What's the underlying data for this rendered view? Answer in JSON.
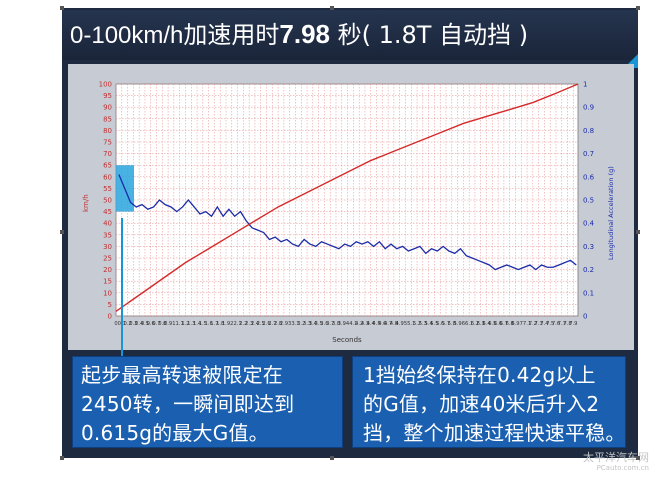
{
  "header": {
    "title_speed": "0-100km/h",
    "title_text1": "加速用时",
    "title_time": "7.98",
    "title_unit": "秒",
    "title_detail": "( 1.8T 自动挡 )"
  },
  "notes": {
    "left_lines": [
      "起步最高转速被限定在",
      "2450转，一瞬间即达到",
      "0.615g的最大G值。"
    ],
    "right_lines": [
      "1挡始终保持在0.42g以上",
      "的G值，加速40米后升入2",
      "挡，整个加速过程快速平稳。"
    ]
  },
  "watermark": {
    "line1": "太平洋汽车网",
    "line2": "PCauto.com.cn"
  },
  "colors": {
    "speed_line": "#d42a2a",
    "accel_line": "#1b2ca8",
    "highlight": "#2aa4de",
    "panel_bg": "#1d2a3f",
    "box_bg": "#1a5fb0"
  },
  "chart_data": {
    "type": "line",
    "xlabel": "Seconds",
    "ylabel_left": "km/h",
    "ylabel_right": "Longitudinal Acceleration (g)",
    "xlim": [
      0,
      7.98
    ],
    "ylim_left": [
      0,
      100
    ],
    "ylim_right": [
      0,
      1
    ],
    "left_ticks": [
      0,
      5,
      10,
      15,
      20,
      25,
      30,
      35,
      40,
      45,
      50,
      55,
      60,
      65,
      70,
      75,
      80,
      85,
      90,
      95,
      100
    ],
    "right_ticks": [
      0,
      0.1,
      0.2,
      0.3,
      0.4,
      0.5,
      0.6,
      0.7,
      0.8,
      0.9,
      1
    ],
    "x_tick_labels": [
      "0",
      "0.1",
      "0.2",
      "0.3",
      "0.4",
      "0.5",
      "0.6",
      "0.7",
      "0.8",
      "0.9",
      "1",
      "1.1",
      "1.2",
      "1.3",
      "1.4",
      "1.5",
      "1.6",
      "1.7",
      "1.8",
      "1.9",
      "2",
      "2.1",
      "2.2",
      "2.3",
      "2.4",
      "2.5",
      "2.6",
      "2.7",
      "2.8",
      "2.9",
      "3",
      "3.1",
      "3.2",
      "3.3",
      "3.4",
      "3.5",
      "3.6",
      "3.7",
      "3.8",
      "3.9",
      "4",
      "4.1",
      "4.2",
      "4.3",
      "4.4",
      "4.5",
      "4.6",
      "4.7",
      "4.8",
      "4.9",
      "5",
      "5.1",
      "5.2",
      "5.3",
      "5.4",
      "5.5",
      "5.6",
      "5.7",
      "5.8",
      "5.9",
      "6",
      "6.1",
      "6.2",
      "6.3",
      "6.4",
      "6.5",
      "6.6",
      "6.7",
      "6.8",
      "6.9",
      "7",
      "7.1",
      "7.2",
      "7.3",
      "7.4",
      "7.5",
      "7.6",
      "7.7",
      "7.8",
      "7.9"
    ],
    "grid": true,
    "series": [
      {
        "axis": "left",
        "x": [
          0,
          0.4,
          0.8,
          1.2,
          1.6,
          2.0,
          2.4,
          2.8,
          3.2,
          3.6,
          4.0,
          4.4,
          4.8,
          5.2,
          5.6,
          6.0,
          6.4,
          6.8,
          7.2,
          7.6,
          7.98
        ],
        "values": [
          2,
          9,
          16,
          23,
          29,
          35,
          41,
          47,
          52,
          57,
          62,
          67,
          71,
          75,
          79,
          83,
          86,
          89,
          92,
          96,
          100
        ]
      },
      {
        "axis": "right",
        "x": [
          0.05,
          0.15,
          0.25,
          0.35,
          0.45,
          0.55,
          0.65,
          0.75,
          0.85,
          0.95,
          1.05,
          1.15,
          1.25,
          1.35,
          1.45,
          1.55,
          1.65,
          1.75,
          1.85,
          1.95,
          2.05,
          2.15,
          2.25,
          2.35,
          2.45,
          2.55,
          2.65,
          2.75,
          2.85,
          2.95,
          3.05,
          3.15,
          3.25,
          3.35,
          3.45,
          3.55,
          3.65,
          3.75,
          3.85,
          3.95,
          4.05,
          4.15,
          4.25,
          4.35,
          4.45,
          4.55,
          4.65,
          4.75,
          4.85,
          4.95,
          5.05,
          5.15,
          5.25,
          5.35,
          5.45,
          5.55,
          5.65,
          5.75,
          5.85,
          5.95,
          6.05,
          6.15,
          6.25,
          6.35,
          6.45,
          6.55,
          6.65,
          6.75,
          6.85,
          6.95,
          7.05,
          7.15,
          7.25,
          7.35,
          7.45,
          7.55,
          7.65,
          7.75,
          7.85,
          7.95
        ],
        "values": [
          0.61,
          0.55,
          0.49,
          0.47,
          0.48,
          0.46,
          0.47,
          0.5,
          0.48,
          0.47,
          0.45,
          0.47,
          0.5,
          0.47,
          0.44,
          0.45,
          0.43,
          0.47,
          0.43,
          0.46,
          0.43,
          0.45,
          0.41,
          0.38,
          0.37,
          0.36,
          0.33,
          0.34,
          0.32,
          0.33,
          0.31,
          0.3,
          0.33,
          0.31,
          0.3,
          0.32,
          0.31,
          0.3,
          0.29,
          0.31,
          0.3,
          0.32,
          0.31,
          0.32,
          0.3,
          0.32,
          0.29,
          0.31,
          0.29,
          0.3,
          0.28,
          0.29,
          0.3,
          0.27,
          0.29,
          0.28,
          0.3,
          0.28,
          0.27,
          0.29,
          0.26,
          0.25,
          0.24,
          0.23,
          0.22,
          0.2,
          0.21,
          0.22,
          0.21,
          0.2,
          0.21,
          0.22,
          0.2,
          0.22,
          0.21,
          0.21,
          0.22,
          0.23,
          0.24,
          0.22
        ]
      }
    ]
  }
}
